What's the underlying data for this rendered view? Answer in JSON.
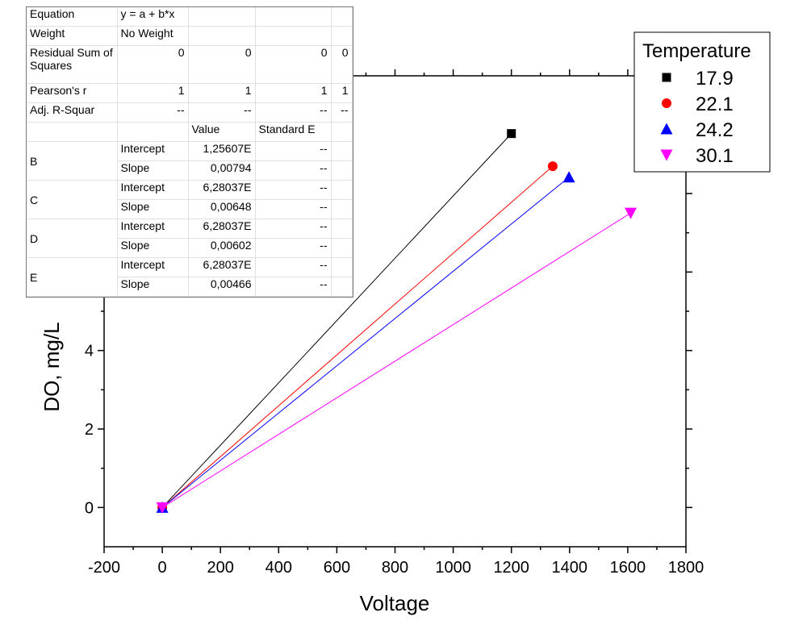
{
  "chart_data": {
    "type": "scatter",
    "xlabel": "Voltage",
    "ylabel": "DO, mg/L",
    "xlim": [
      -200,
      1800
    ],
    "ylim": [
      -1,
      11
    ],
    "x_ticks": [
      -200,
      0,
      200,
      400,
      600,
      800,
      1000,
      1200,
      1400,
      1600,
      1800
    ],
    "y_ticks": [
      0,
      2,
      4
    ],
    "legend_title": "Temperature",
    "legend_placement": "top-right",
    "series": [
      {
        "name": "17.9",
        "marker": "square",
        "color": "#000000",
        "x": [
          0,
          1200
        ],
        "y": [
          0,
          9.528
        ]
      },
      {
        "name": "22.1",
        "marker": "circle",
        "color": "#ff0000",
        "x": [
          0,
          1342
        ],
        "y": [
          0,
          8.696
        ]
      },
      {
        "name": "24.2",
        "marker": "triangle-up",
        "color": "#0000ff",
        "x": [
          0,
          1398
        ],
        "y": [
          0,
          8.416
        ]
      },
      {
        "name": "30.1",
        "marker": "triangle-down",
        "color": "#ff00ff",
        "x": [
          0,
          1610
        ],
        "y": [
          0,
          7.503
        ]
      }
    ]
  },
  "table": {
    "equation_label": "Equation",
    "equation_value": "y = a + b*x",
    "weight_label": "Weight",
    "weight_value": "No Weight",
    "rss_label": "Residual Sum of Squares",
    "rss_values": [
      "0",
      "0",
      "0",
      "0"
    ],
    "pearson_label": "Pearson's r",
    "pearson_values": [
      "1",
      "1",
      "1",
      "1"
    ],
    "adjr_label": "Adj. R-Squar",
    "adjr_values": [
      "--",
      "--",
      "--",
      "--"
    ],
    "value_header": "Value",
    "stderr_header": "Standard E",
    "groups": [
      {
        "name": "B",
        "intercept_label": "Intercept",
        "intercept": "1,25607E",
        "intercept_err": "--",
        "slope_label": "Slope",
        "slope": "0,00794",
        "slope_err": "--"
      },
      {
        "name": "C",
        "intercept_label": "Intercept",
        "intercept": "6,28037E",
        "intercept_err": "--",
        "slope_label": "Slope",
        "slope": "0,00648",
        "slope_err": "--"
      },
      {
        "name": "D",
        "intercept_label": "Intercept",
        "intercept": "6,28037E",
        "intercept_err": "--",
        "slope_label": "Slope",
        "slope": "0,00602",
        "slope_err": "--"
      },
      {
        "name": "E",
        "intercept_label": "Intercept",
        "intercept": "6,28037E",
        "intercept_err": "--",
        "slope_label": "Slope",
        "slope": "0,00466",
        "slope_err": "--"
      }
    ]
  }
}
